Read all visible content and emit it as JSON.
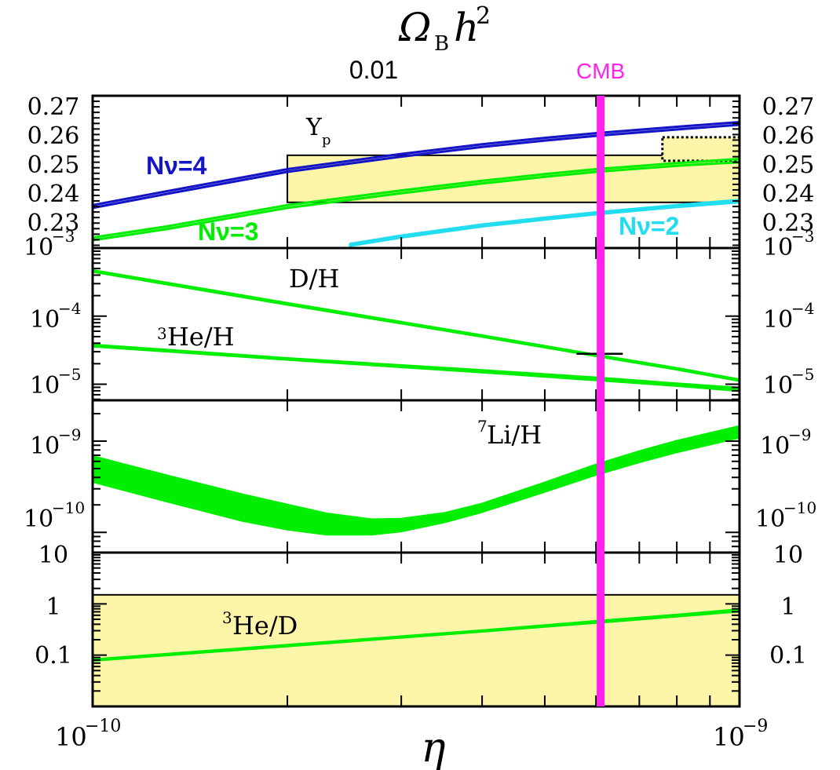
{
  "colors": {
    "green": "#00ee00",
    "blue": "#1515c8",
    "cyan": "#22ddee",
    "magenta": "#ff22ee",
    "band": "#fdf5a8",
    "band_dark": "#ebe39a"
  },
  "chart_data": {
    "type": "line",
    "title": "Ω_B h²",
    "x_axis": {
      "label": "η",
      "scale": "log",
      "range": [
        1e-10,
        1e-09
      ],
      "tick_labels": [
        "10",
        "10"
      ],
      "tick_exponents": [
        "−10",
        "−9"
      ]
    },
    "top_axis": {
      "label_main": "Ω",
      "label_sub": "B",
      "label_var": "h",
      "label_sup": "2",
      "tick_label": "0.01",
      "tick_position_eta": 2.74e-10
    },
    "cmb": {
      "label": "CMB",
      "eta": 6.1e-10
    },
    "panels": [
      {
        "name": "Yp",
        "label": "Y",
        "label_sub": "p",
        "yscale": "linear",
        "ylim": [
          0.22,
          0.275
        ],
        "tick_labels": [
          "0.27",
          "0.26",
          "0.25",
          "0.24",
          "0.23"
        ],
        "tick_values": [
          0.27,
          0.26,
          0.25,
          0.24,
          0.23
        ],
        "bottom_label_base": "10",
        "bottom_label_exp": "−3",
        "observation_boxes": [
          {
            "name": "Yp-observed",
            "eta_range": [
              2e-10,
              1e-09
            ],
            "y_range": [
              0.2365,
              0.2535
            ],
            "style": "solid"
          },
          {
            "name": "Yp-alternative",
            "eta_range": [
              7.6e-10,
              1e-09
            ],
            "y_range": [
              0.2515,
              0.26
            ],
            "style": "dotted"
          }
        ],
        "series": [
          {
            "name": "Nν=4",
            "color": "#1515c8",
            "eta": [
              1e-10,
              1.3e-10,
              2e-10,
              3e-10,
              4e-10,
              5e-10,
              6e-10,
              8e-10,
              1e-09
            ],
            "lower": [
              0.2345,
              0.2395,
              0.2475,
              0.253,
              0.2565,
              0.2588,
              0.2605,
              0.2628,
              0.2645
            ],
            "upper": [
              0.2355,
              0.2405,
              0.2485,
              0.254,
              0.2575,
              0.2598,
              0.2615,
              0.2638,
              0.2655
            ]
          },
          {
            "name": "Nν=3",
            "color": "#00ee00",
            "eta": [
              1e-10,
              1.3e-10,
              2e-10,
              3e-10,
              4e-10,
              5e-10,
              6e-10,
              8e-10,
              1e-09
            ],
            "lower": [
              0.2228,
              0.2268,
              0.2345,
              0.2398,
              0.2433,
              0.2457,
              0.2475,
              0.2497,
              0.251
            ],
            "upper": [
              0.2238,
              0.2278,
              0.2355,
              0.2408,
              0.2443,
              0.2467,
              0.2485,
              0.2507,
              0.2522
            ]
          },
          {
            "name": "Nν=2",
            "color": "#22ddee",
            "eta": [
              2.5e-10,
              3e-10,
              4e-10,
              5e-10,
              6e-10,
              8e-10,
              1e-09
            ],
            "lower": [
              0.2208,
              0.2238,
              0.2278,
              0.2303,
              0.2322,
              0.2348,
              0.2365
            ],
            "upper": [
              0.2215,
              0.2245,
              0.2285,
              0.231,
              0.2329,
              0.2355,
              0.2374
            ]
          }
        ],
        "series_labels": [
          {
            "name": "Nν=4",
            "text": "Nν=4",
            "color": "#1515c8"
          },
          {
            "name": "Nν=3",
            "text": "Nν=3",
            "color": "#00ee00"
          },
          {
            "name": "Nν=2",
            "text": "Nν=2",
            "color": "#22ddee"
          }
        ]
      },
      {
        "name": "DH-3HeH",
        "yscale": "log",
        "ylim": [
          5.8e-06,
          0.001
        ],
        "tick_labels": [
          "10",
          "10"
        ],
        "tick_exponents": [
          "−4",
          "−5"
        ],
        "tick_values": [
          0.0001,
          1e-05
        ],
        "bottom_label_base": "",
        "series": [
          {
            "name": "D/H",
            "label": "D/H",
            "color": "#00ee00",
            "eta": [
              1e-10,
              2e-10,
              4e-10,
              6e-10,
              8e-10,
              1e-09
            ],
            "lower": [
              0.00045,
              0.000148,
              5e-05,
              2.6e-05,
              1.65e-05,
              1.12e-05
            ],
            "upper": [
              0.00047,
              0.000155,
              5.2e-05,
              2.7e-05,
              1.72e-05,
              1.17e-05
            ]
          },
          {
            "name": "3He/H",
            "label_sup": "3",
            "label": "He/H",
            "color": "#00ee00",
            "eta": [
              1e-10,
              2e-10,
              4e-10,
              6e-10,
              8e-10,
              1e-09
            ],
            "lower": [
              3.6e-05,
              2.3e-05,
              1.5e-05,
              1.15e-05,
              9.5e-06,
              8e-06
            ],
            "upper": [
              3.8e-05,
              2.4e-05,
              1.6e-05,
              1.25e-05,
              1.02e-05,
              8.8e-06
            ]
          }
        ],
        "measurement": {
          "name": "D/H-measured",
          "eta_range": [
            5.6e-10,
            6.6e-10
          ],
          "value": 2.8e-05
        }
      },
      {
        "name": "7LiH",
        "label_sup": "7",
        "label": "Li/H",
        "yscale": "log",
        "ylim": [
          6e-11,
          2.8e-09
        ],
        "tick_labels": [
          "10",
          "10"
        ],
        "tick_exponents": [
          "−9",
          "−10"
        ],
        "tick_values": [
          1e-09,
          1e-10
        ],
        "series": [
          {
            "name": "7Li/H",
            "color": "#00ee00",
            "eta": [
              1e-10,
              1.3e-10,
              1.7e-10,
              2e-10,
              2.3e-10,
              2.7e-10,
              3e-10,
              3.5e-10,
              4e-10,
              5e-10,
              6e-10,
              7e-10,
              8e-10,
              1e-09
            ],
            "lower": [
              3.6e-10,
              2.2e-10,
              1.35e-10,
              1.08e-10,
              9.5e-11,
              9.5e-11,
              1.03e-10,
              1.3e-10,
              1.68e-10,
              2.8e-10,
              4.3e-10,
              5.9e-10,
              7.6e-10,
              1.1e-09
            ],
            "upper": [
              6.8e-10,
              4.2e-10,
              2.6e-10,
              2e-10,
              1.6e-10,
              1.38e-10,
              1.4e-10,
              1.62e-10,
              2.05e-10,
              3.5e-10,
              5.5e-10,
              7.7e-10,
              1e-09,
              1.45e-09
            ]
          }
        ]
      },
      {
        "name": "3HeD",
        "label_sup": "3",
        "label": "He/D",
        "yscale": "log",
        "ylim": [
          0.01,
          10
        ],
        "tick_labels": [
          "10",
          "1",
          "0.1"
        ],
        "tick_values": [
          10,
          1,
          0.1
        ],
        "observation_box": {
          "name": "3He/D-bound",
          "eta_range": [
            1e-10,
            1e-09
          ],
          "y_range": [
            0.01,
            1.5
          ]
        },
        "series": [
          {
            "name": "3He/D",
            "color": "#00ee00",
            "eta": [
              1e-10,
              2e-10,
              4e-10,
              6e-10,
              8e-10,
              1e-09
            ],
            "lower": [
              0.078,
              0.15,
              0.29,
              0.43,
              0.57,
              0.72
            ],
            "upper": [
              0.082,
              0.158,
              0.302,
              0.46,
              0.61,
              0.78
            ]
          }
        ]
      }
    ]
  }
}
